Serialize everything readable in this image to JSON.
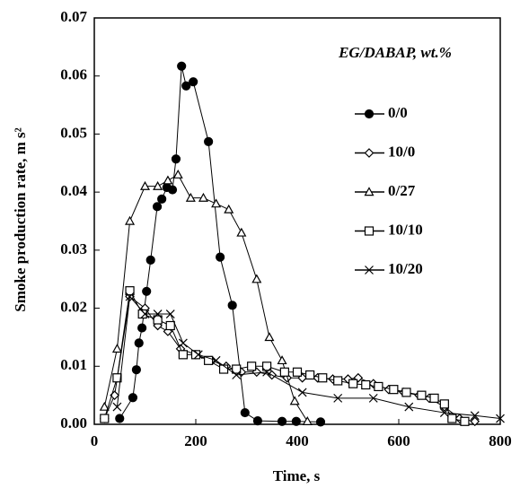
{
  "chart_data": {
    "type": "line",
    "x_label": "Time, s",
    "y_label": "Smoke production rate, m s²",
    "legend_title": "EG/DABAP, wt.%",
    "xlim": [
      0,
      800
    ],
    "xticks": [
      0,
      200,
      400,
      600,
      800
    ],
    "ylim": [
      0,
      0.07
    ],
    "yticks": [
      {
        "value": 0,
        "label": "0.00"
      },
      0.01,
      0.02,
      0.03,
      0.04,
      0.05,
      0.06,
      0.07
    ],
    "series": [
      {
        "name": "0/0",
        "color": "#000000",
        "marker": "circle-filled",
        "x": [
          50,
          76,
          83,
          88,
          94,
          103,
          111,
          124,
          133,
          143,
          154,
          161,
          172,
          181,
          195,
          225,
          248,
          272,
          297,
          322,
          370,
          398,
          446
        ],
        "values": [
          0.001,
          0.0046,
          0.0094,
          0.014,
          0.0166,
          0.0229,
          0.0283,
          0.0375,
          0.0388,
          0.0408,
          0.0404,
          0.0457,
          0.0617,
          0.0583,
          0.059,
          0.0487,
          0.0288,
          0.0205,
          0.002,
          0.0006,
          0.0005,
          0.0005,
          0.0004
        ]
      },
      {
        "name": "10/0",
        "color": "#000000",
        "marker": "diamond",
        "x": [
          20,
          40,
          70,
          100,
          125,
          145,
          170,
          200,
          230,
          260,
          290,
          320,
          350,
          380,
          410,
          440,
          470,
          500,
          520,
          550,
          580,
          610,
          640,
          660,
          690,
          720,
          750
        ],
        "values": [
          0.001,
          0.005,
          0.022,
          0.02,
          0.017,
          0.016,
          0.013,
          0.012,
          0.011,
          0.01,
          0.009,
          0.009,
          0.0085,
          0.008,
          0.008,
          0.008,
          0.0078,
          0.0078,
          0.008,
          0.007,
          0.006,
          0.0055,
          0.005,
          0.0045,
          0.003,
          0.001,
          0.0005
        ]
      },
      {
        "name": "0/27",
        "color": "#000000",
        "marker": "triangle",
        "x": [
          20,
          45,
          70,
          100,
          125,
          145,
          165,
          190,
          215,
          240,
          265,
          290,
          320,
          345,
          370,
          395,
          420
        ],
        "values": [
          0.003,
          0.013,
          0.035,
          0.041,
          0.041,
          0.042,
          0.043,
          0.039,
          0.039,
          0.038,
          0.037,
          0.033,
          0.025,
          0.015,
          0.011,
          0.004,
          0.0005
        ]
      },
      {
        "name": "10/10",
        "color": "#000000",
        "marker": "square",
        "x": [
          20,
          45,
          70,
          95,
          125,
          150,
          175,
          200,
          225,
          255,
          280,
          310,
          340,
          375,
          400,
          425,
          450,
          480,
          510,
          535,
          560,
          590,
          615,
          645,
          670,
          690,
          705,
          730
        ],
        "values": [
          0.001,
          0.008,
          0.023,
          0.019,
          0.018,
          0.017,
          0.012,
          0.012,
          0.011,
          0.0095,
          0.0095,
          0.01,
          0.01,
          0.009,
          0.009,
          0.0085,
          0.008,
          0.0075,
          0.007,
          0.0068,
          0.0065,
          0.006,
          0.0055,
          0.005,
          0.0045,
          0.0035,
          0.001,
          0.0005
        ]
      },
      {
        "name": "10/20",
        "color": "#000000",
        "marker": "cross",
        "x": [
          45,
          70,
          100,
          125,
          150,
          175,
          205,
          240,
          280,
          340,
          410,
          480,
          550,
          620,
          690,
          750,
          800
        ],
        "values": [
          0.003,
          0.022,
          0.019,
          0.019,
          0.019,
          0.014,
          0.012,
          0.011,
          0.0085,
          0.009,
          0.0055,
          0.0045,
          0.0045,
          0.003,
          0.002,
          0.0015,
          0.001
        ]
      }
    ]
  }
}
